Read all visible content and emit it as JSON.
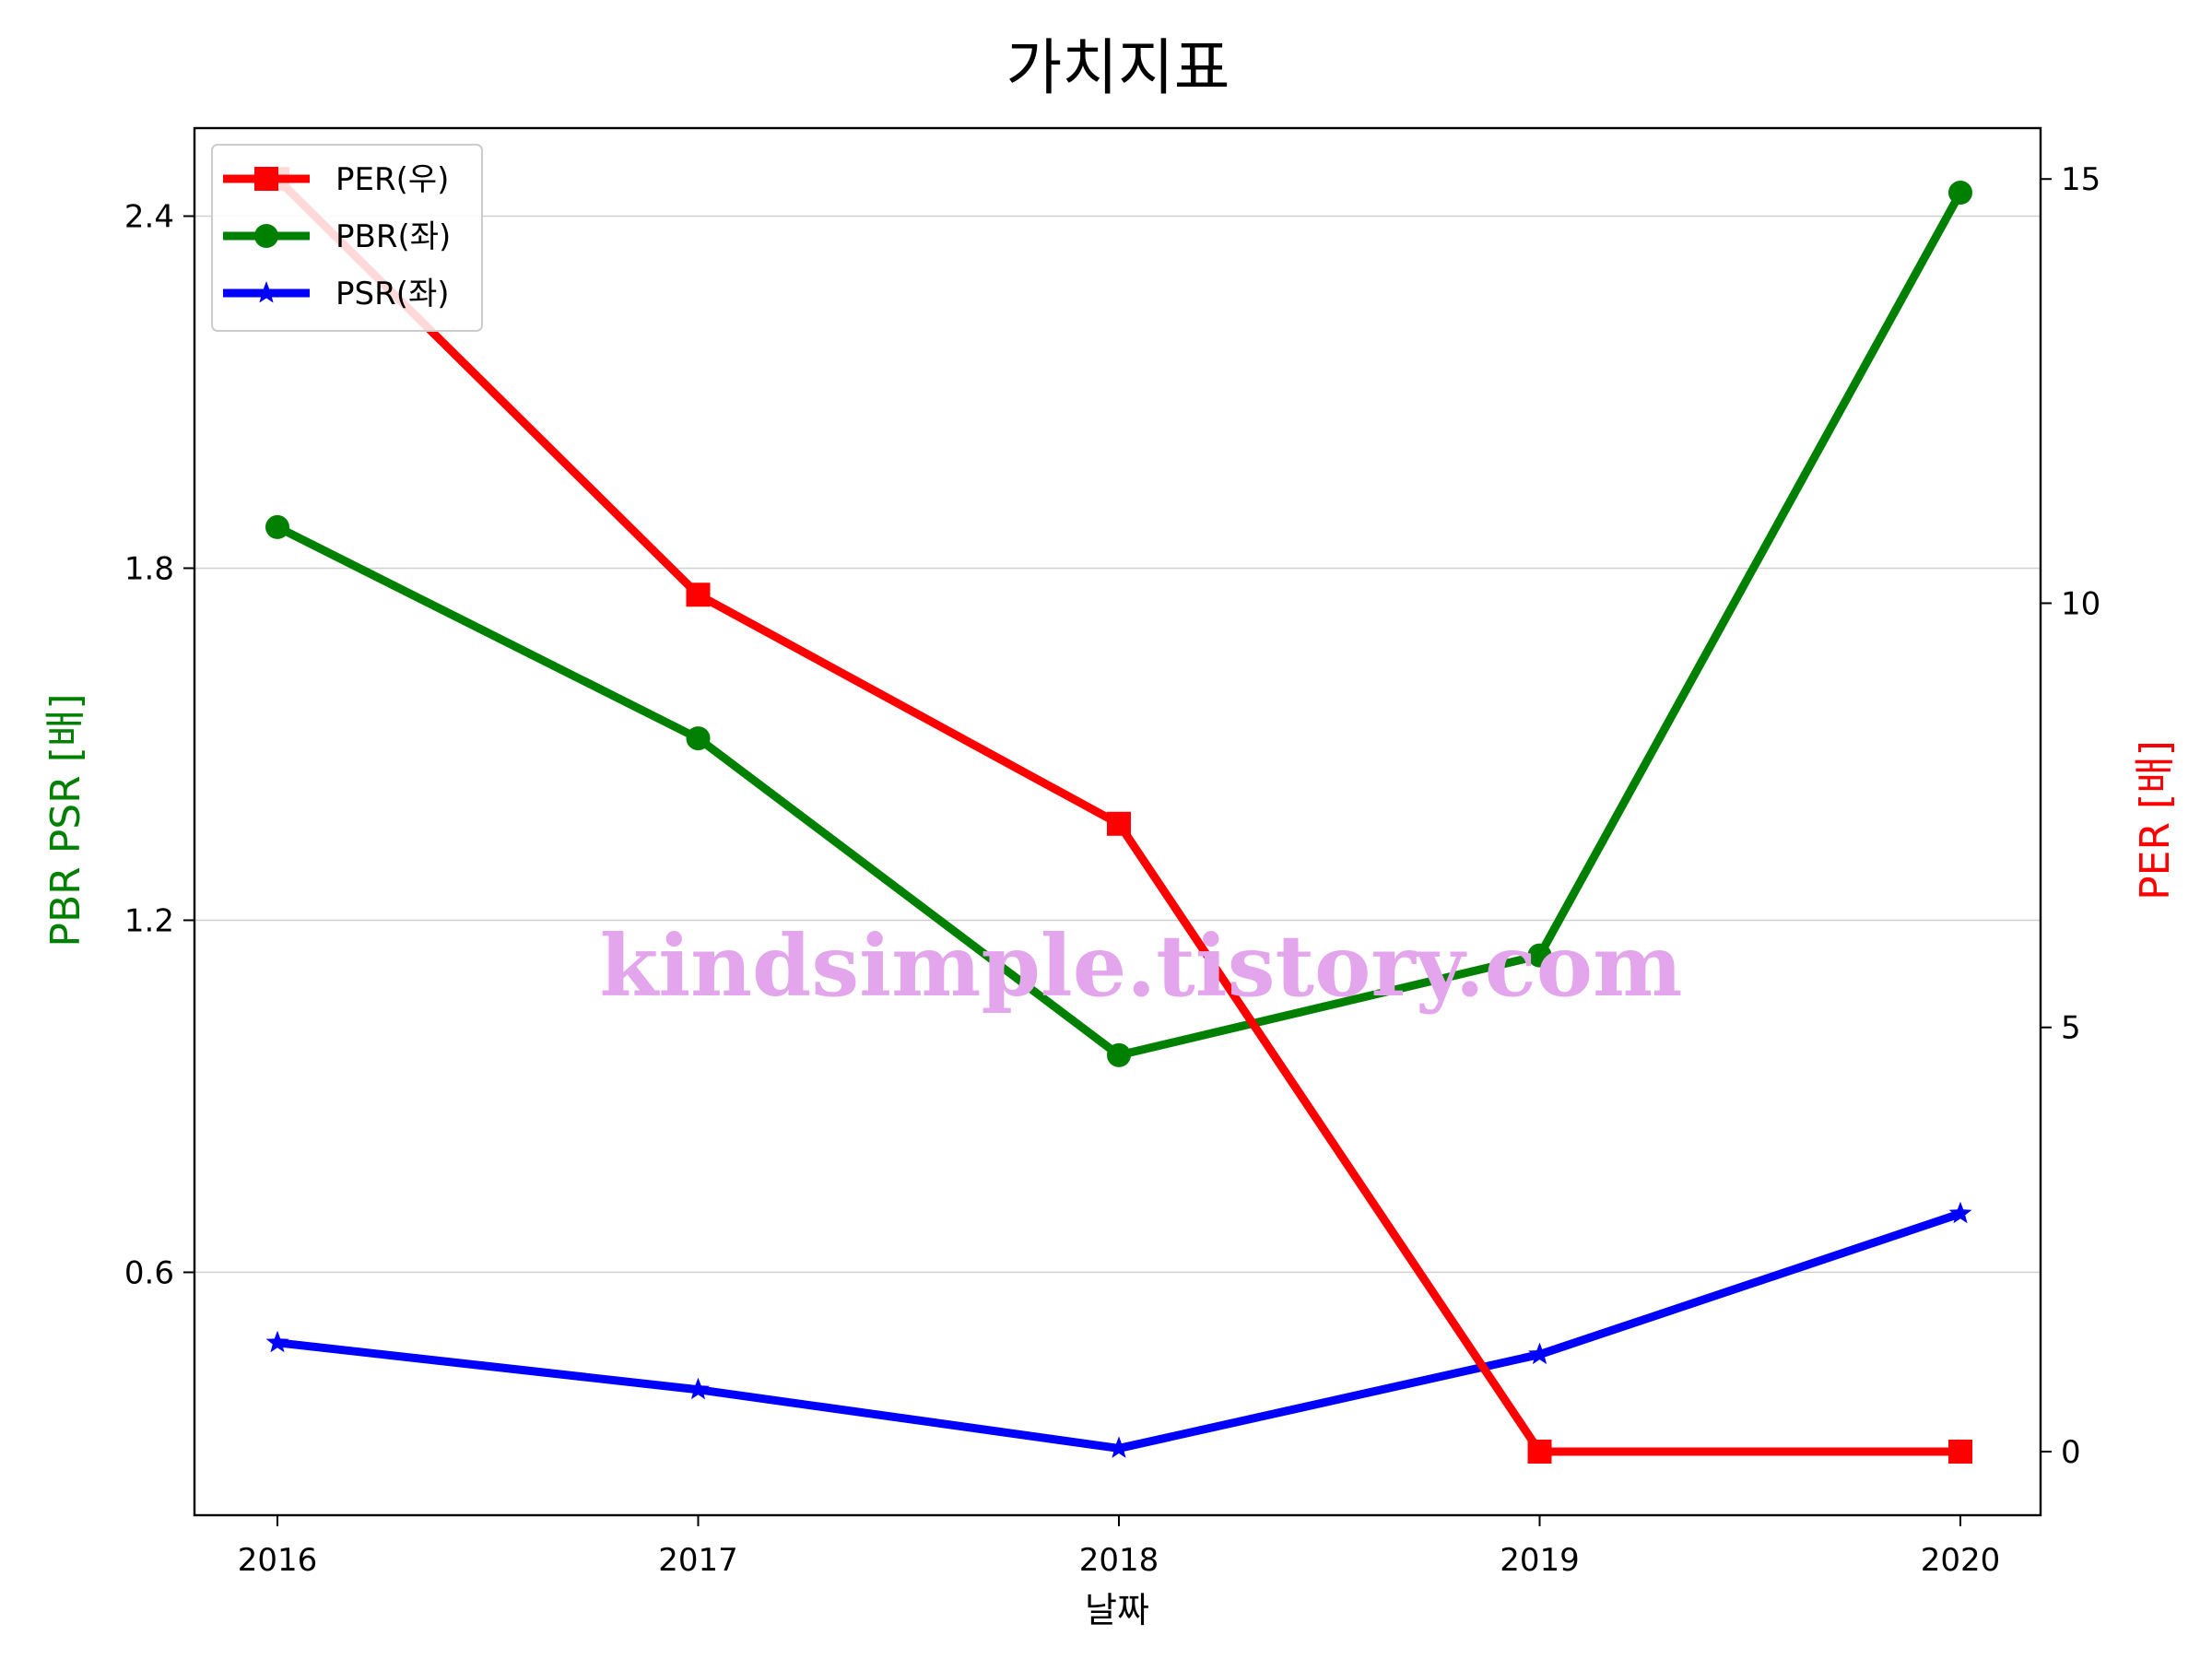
{
  "chart_data": {
    "type": "line",
    "title": "가치지표",
    "xlabel": "날짜",
    "ylabel_left": "PBR PSR [배]",
    "ylabel_right": "PER [배]",
    "categories": [
      "2016",
      "2017",
      "2018",
      "2019",
      "2020"
    ],
    "ylim_left": [
      0.186,
      2.55
    ],
    "yticks_left": [
      "0.6",
      "1.2",
      "1.8",
      "2.4"
    ],
    "ylim_right": [
      -0.75,
      15.6
    ],
    "yticks_right": [
      "0",
      "5",
      "10",
      "15"
    ],
    "grid": "horizontal, left axis",
    "legend_position": "top-left",
    "series": [
      {
        "name": "PER(우)",
        "axis": "right",
        "color": "#ff0000",
        "marker": "square",
        "values": [
          15.0,
          10.1,
          7.4,
          0.0,
          0.0
        ]
      },
      {
        "name": "PBR(좌)",
        "axis": "left",
        "color": "#008000",
        "marker": "circle",
        "values": [
          1.87,
          1.51,
          0.97,
          1.14,
          2.44
        ]
      },
      {
        "name": "PSR(좌)",
        "axis": "left",
        "color": "#0000ff",
        "marker": "star",
        "values": [
          0.48,
          0.4,
          0.3,
          0.46,
          0.7
        ]
      }
    ],
    "label_colors": {
      "left": "#008000",
      "right": "#ff0000"
    }
  },
  "watermark": {
    "text": "kindsimple.tistory.com",
    "color": "#e3a6ec"
  }
}
